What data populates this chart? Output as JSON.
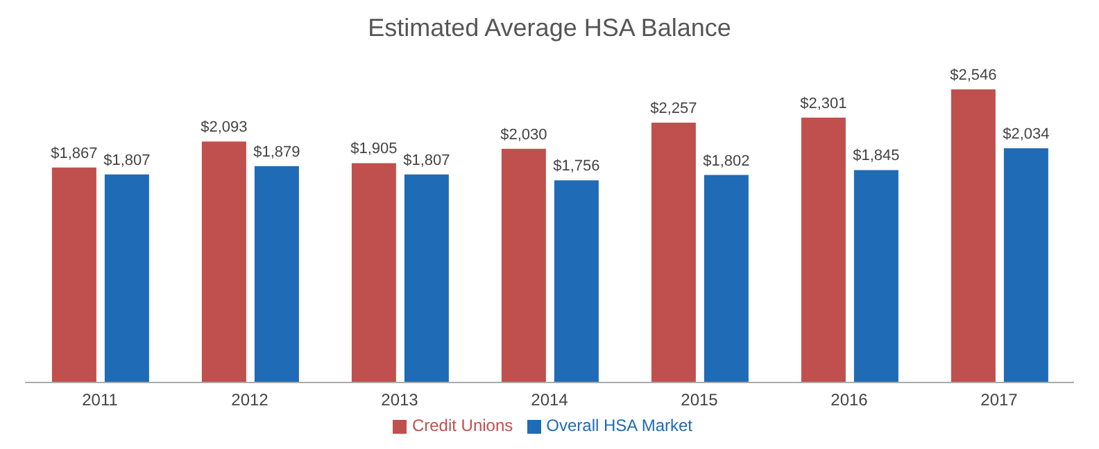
{
  "chart_data": {
    "type": "bar",
    "title": "Estimated Average HSA Balance",
    "categories": [
      "2011",
      "2012",
      "2013",
      "2014",
      "2015",
      "2016",
      "2017"
    ],
    "series": [
      {
        "name": "Credit Unions",
        "color": "#c0504d",
        "values": [
          1867,
          2093,
          1905,
          2030,
          2257,
          2301,
          2546
        ],
        "value_labels": [
          "$1,867",
          "$2,093",
          "$1,905",
          "$2,030",
          "$2,257",
          "$2,301",
          "$2,546"
        ]
      },
      {
        "name": "Overall HSA Market",
        "color": "#1f6bb5",
        "values": [
          1807,
          1879,
          1807,
          1756,
          1802,
          1845,
          2034
        ],
        "value_labels": [
          "$1,807",
          "$1,879",
          "$1,807",
          "$1,756",
          "$1,802",
          "$1,845",
          "$2,034"
        ]
      }
    ],
    "legend": "bottom",
    "grid": false,
    "tick_labels": "x"
  }
}
